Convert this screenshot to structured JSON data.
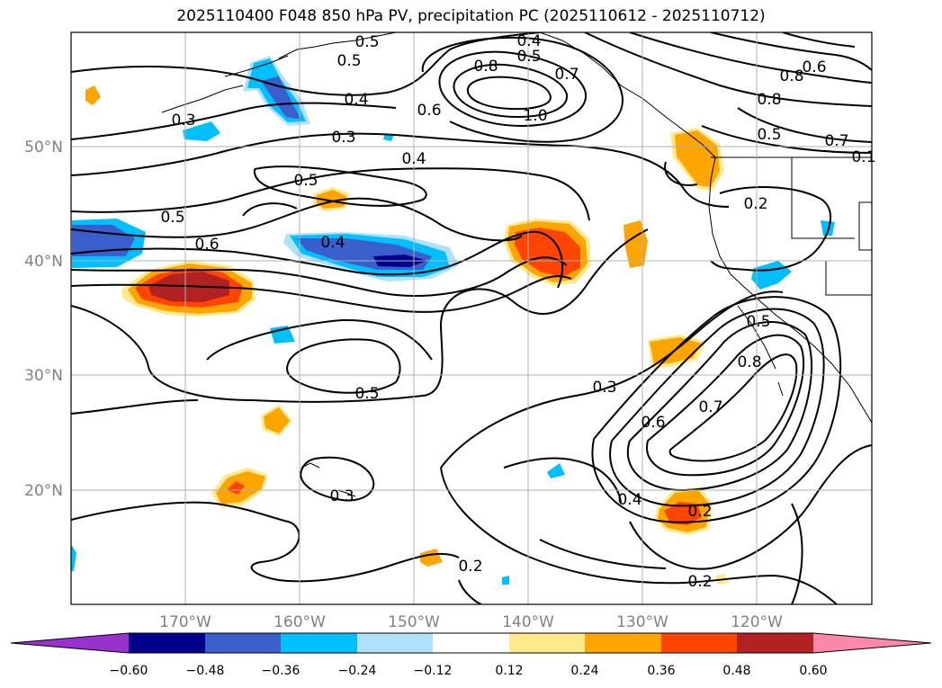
{
  "title": "2025110400 F048 850 hPa PV, precipitation PC (2025110612 - 2025110712)",
  "map": {
    "lon_labels": [
      "170°W",
      "160°W",
      "150°W",
      "140°W",
      "130°W",
      "120°W"
    ],
    "lat_labels": [
      "50°N",
      "40°N",
      "30°N",
      "20°N"
    ],
    "contour_labels": [
      "0.5",
      "0.4",
      "0.5",
      "0.8",
      "0.7",
      "0.5",
      "0.6",
      "0.8",
      "0.3",
      "0.4",
      "0.6",
      "1.0",
      "0.3",
      "0.8",
      "0.5",
      "0.7",
      "0.4",
      "0.5",
      "0.5",
      "0.6",
      "0.2",
      "0.4",
      "0.3",
      "0.5",
      "0.6",
      "0.7",
      "0.8",
      "0.5",
      "0.3",
      "0.4",
      "0.2",
      "0.2",
      "0.2",
      "0.1"
    ]
  },
  "colorbar": {
    "tick_labels": [
      "−0.60",
      "−0.48",
      "−0.36",
      "−0.24",
      "−0.12",
      "0.12",
      "0.24",
      "0.36",
      "0.48",
      "0.60"
    ],
    "colors": [
      "#9932cc",
      "#00008b",
      "#3a5fcd",
      "#00bfff",
      "#b0e2ff",
      "#ffffff",
      "#ffe98c",
      "#ffa500",
      "#ff4500",
      "#b22222",
      "#ff88aa"
    ]
  }
}
